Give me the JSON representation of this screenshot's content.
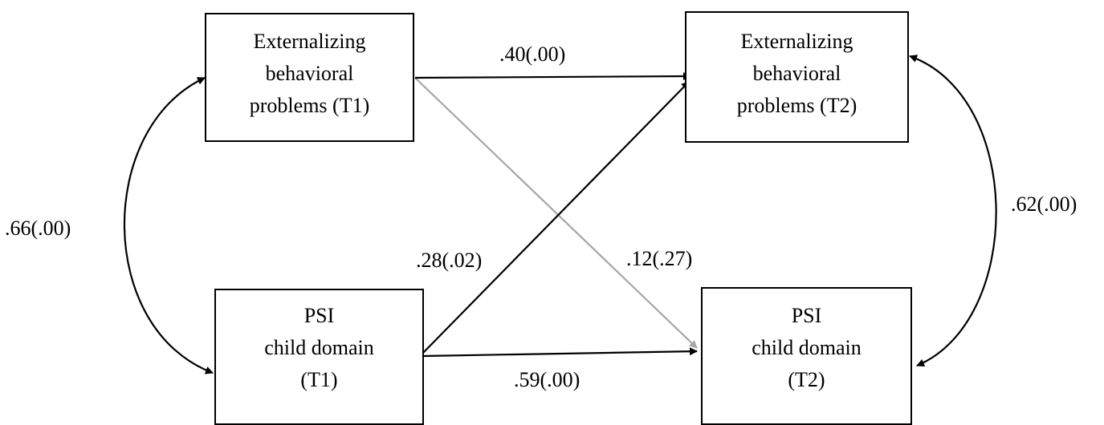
{
  "nodes": {
    "ext_t1": {
      "lines": [
        "Externalizing",
        "behavioral",
        "problems (T1)"
      ]
    },
    "ext_t2": {
      "lines": [
        "Externalizing",
        "behavioral",
        "problems (T2)"
      ]
    },
    "psi_t1": {
      "lines": [
        "PSI",
        "child domain",
        "(T1)"
      ]
    },
    "psi_t2": {
      "lines": [
        "PSI",
        "child domain",
        "(T2)"
      ]
    }
  },
  "paths": {
    "ext_t1_to_ext_t2": {
      "label": ".40(.00)",
      "color": "#000000"
    },
    "ext_t1_to_psi_t2": {
      "label": ".12(.27)",
      "color": "#a6a6a6"
    },
    "psi_t1_to_ext_t2": {
      "label": ".28(.02)",
      "color": "#000000"
    },
    "psi_t1_to_psi_t2": {
      "label": ".59(.00)",
      "color": "#000000"
    }
  },
  "correlations": {
    "t1": {
      "label": ".66(.00)",
      "color": "#000000"
    },
    "t2": {
      "label": ".62(.00)",
      "color": "#000000"
    }
  }
}
